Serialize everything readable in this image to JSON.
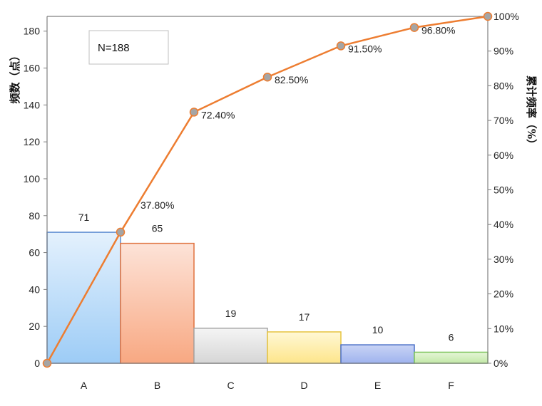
{
  "chart_data": {
    "type": "bar",
    "subtype": "pareto",
    "categories": [
      "A",
      "B",
      "C",
      "D",
      "E",
      "F"
    ],
    "values": [
      71,
      65,
      19,
      17,
      10,
      6
    ],
    "bar_labels": [
      "71",
      "65",
      "19",
      "17",
      "10",
      "6"
    ],
    "bar_colors": [
      {
        "fill_top": "#e4f1fd",
        "fill_bottom": "#9dccf6",
        "stroke": "#5b8bd0"
      },
      {
        "fill_top": "#fde3d8",
        "fill_bottom": "#f8a882",
        "stroke": "#e0723f"
      },
      {
        "fill_top": "#f5f5f5",
        "fill_bottom": "#d6d6d6",
        "stroke": "#a5a5a5"
      },
      {
        "fill_top": "#fff8d6",
        "fill_bottom": "#fde58a",
        "stroke": "#e6c440"
      },
      {
        "fill_top": "#c9d4f5",
        "fill_bottom": "#9fb3ee",
        "stroke": "#4a6fc7"
      },
      {
        "fill_top": "#e6f6d8",
        "fill_bottom": "#c1e8a6",
        "stroke": "#7cc35a"
      }
    ],
    "cumulative": {
      "values": [
        0,
        37.8,
        72.4,
        82.5,
        91.5,
        96.8,
        100
      ],
      "labels": [
        "",
        "37.80%",
        "72.40%",
        "82.50%",
        "91.50%",
        "96.80%",
        ""
      ],
      "line_color": "#ed7d31",
      "marker_color": "#a5a5a5"
    },
    "ylabel": "频数（点）",
    "y2label": "累计频率（%）",
    "ylim": [
      0,
      188
    ],
    "y_ticks": [
      0,
      20,
      40,
      60,
      80,
      100,
      120,
      140,
      160,
      180
    ],
    "y2lim": [
      0,
      100
    ],
    "y2_ticks": [
      "0%",
      "10%",
      "20%",
      "30%",
      "40%",
      "50%",
      "60%",
      "70%",
      "80%",
      "90%",
      "100%"
    ],
    "annotation": "N=188",
    "grid": false,
    "legend": "none"
  }
}
